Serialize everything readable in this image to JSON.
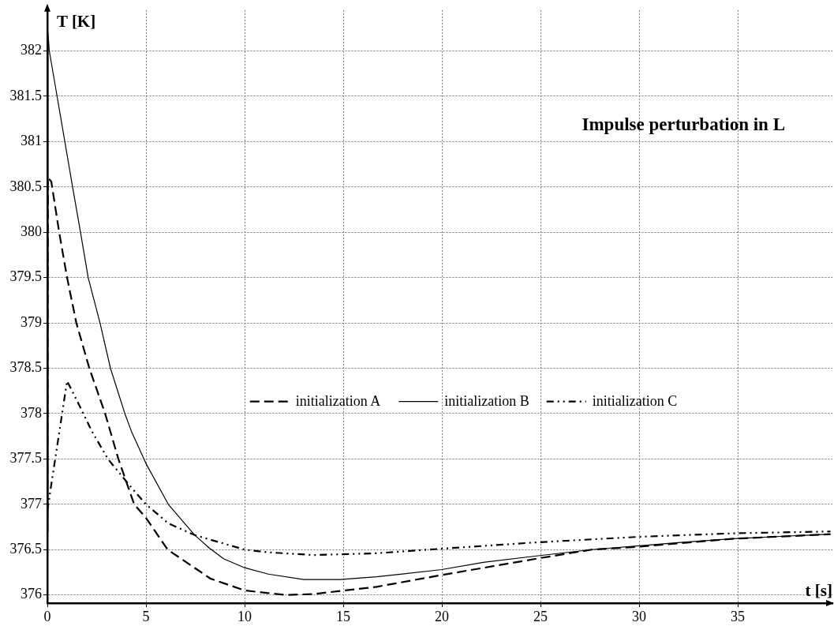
{
  "chart_data": {
    "type": "line",
    "title": "Impulse perturbation in L",
    "xlabel": "t [s]",
    "ylabel": "T [K]",
    "xlim": [
      0,
      39.8
    ],
    "xticks": [
      0,
      5,
      10,
      15,
      20,
      25,
      30,
      35
    ],
    "ylim": [
      375.91,
      382.45
    ],
    "yticks": [
      376,
      376.5,
      377,
      377.5,
      378,
      378.5,
      379,
      379.5,
      380,
      380.5,
      381,
      381.5,
      382
    ],
    "grid": true,
    "legend": "center",
    "series": [
      {
        "name": "initialization A",
        "color": "#000000",
        "line_style": "dashed",
        "x": [
          0,
          0.03,
          0.2,
          0.6,
          1.0,
          1.47,
          2.13,
          2.93,
          3.6,
          4.4,
          5,
          6.1,
          8.27,
          10,
          11.2,
          12.1,
          13.5,
          16.7,
          20,
          24.8,
          27.6,
          29.9,
          34.8,
          39.7
        ],
        "values": [
          376.7,
          380.6,
          380.56,
          380.0,
          379.5,
          379.0,
          378.5,
          378.0,
          377.5,
          377.0,
          376.85,
          376.5,
          376.18,
          376.05,
          376.02,
          376.0,
          376.01,
          376.09,
          376.22,
          376.4,
          376.5,
          376.53,
          376.62,
          376.67
        ]
      },
      {
        "name": "initialization B",
        "color": "#000000",
        "line_style": "solid",
        "x": [
          0,
          0.03,
          0.1,
          1.28,
          1.68,
          2.07,
          2.67,
          3.2,
          3.93,
          4.27,
          5,
          6.13,
          7.47,
          8.2,
          8.93,
          10,
          11.2,
          13.0,
          14.84,
          16.7,
          20,
          22.1,
          24.8,
          27.6,
          29.9,
          32.1,
          34.8,
          37.6,
          39.7
        ],
        "values": [
          376.7,
          382.2,
          382.0,
          380.5,
          380.0,
          379.5,
          379.0,
          378.5,
          378.0,
          377.8,
          377.45,
          377.0,
          376.66,
          376.52,
          376.4,
          376.3,
          376.23,
          376.17,
          376.17,
          376.2,
          376.28,
          376.36,
          376.43,
          376.5,
          376.54,
          376.58,
          376.62,
          376.65,
          376.67
        ]
      },
      {
        "name": "initialization C",
        "color": "#000000",
        "line_style": "dotted",
        "x": [
          0,
          1.0,
          1.6,
          2.27,
          3.07,
          4.2,
          5,
          6.13,
          7.47,
          10,
          11.2,
          13.5,
          16.7,
          20,
          24.8,
          29.9,
          34.8,
          39.7
        ],
        "values": [
          376.93,
          378.36,
          378.1,
          377.8,
          377.5,
          377.2,
          377.0,
          376.79,
          376.66,
          376.5,
          376.47,
          376.44,
          376.46,
          376.51,
          376.58,
          376.64,
          376.68,
          376.7
        ]
      }
    ]
  }
}
